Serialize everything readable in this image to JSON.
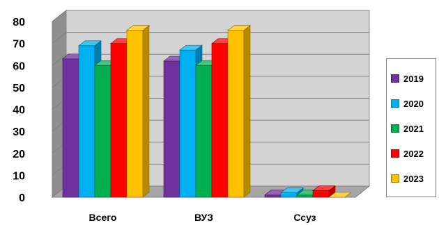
{
  "chart_data": {
    "type": "bar",
    "title": "",
    "xlabel": "",
    "ylabel": "",
    "ylim": [
      0,
      80
    ],
    "yticks": [
      0,
      10,
      20,
      30,
      40,
      50,
      60,
      70,
      80
    ],
    "grid": true,
    "legend_position": "right",
    "categories": [
      "Всего",
      "ВУЗ",
      "Ссуз"
    ],
    "series": [
      {
        "name": "2019",
        "color": "#7030A0",
        "values": [
          63,
          62,
          1
        ]
      },
      {
        "name": "2020",
        "color": "#00B0F0",
        "values": [
          69,
          67,
          2
        ]
      },
      {
        "name": "2021",
        "color": "#00B050",
        "values": [
          60,
          60,
          1
        ]
      },
      {
        "name": "2022",
        "color": "#FF0000",
        "values": [
          70,
          70,
          3
        ]
      },
      {
        "name": "2023",
        "color": "#FFC000",
        "values": [
          76,
          76,
          0
        ]
      }
    ]
  }
}
